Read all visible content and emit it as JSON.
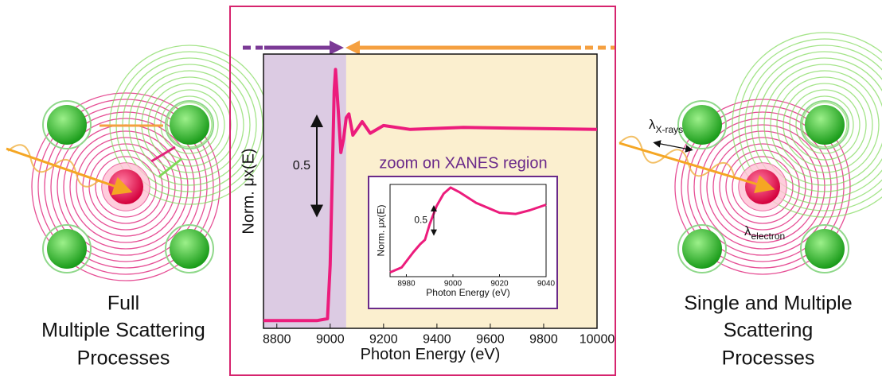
{
  "chart_data": [
    {
      "type": "line",
      "x_label": "Photon Energy (eV)",
      "y_label": "Norm. μx(E)",
      "x": [
        8750,
        8950,
        8990,
        9000,
        9010,
        9015,
        9020,
        9030,
        9040,
        9050,
        9060,
        9070,
        9085,
        9100,
        9120,
        9150,
        9200,
        9300,
        9500,
        10000
      ],
      "series": [
        {
          "color": "#ec1c7c",
          "values": [
            0.01,
            0.01,
            0.02,
            0.3,
            0.9,
            1.2,
            1.31,
            1.1,
            0.88,
            0.95,
            1.06,
            1.08,
            0.97,
            1.0,
            1.04,
            0.98,
            1.02,
            1.0,
            1.01,
            1.0
          ]
        }
      ],
      "xlim": [
        8750,
        10000
      ],
      "xticks": [
        8800,
        9000,
        9200,
        9400,
        9600,
        9800,
        10000
      ],
      "ylim": [
        -0.03,
        1.39
      ],
      "regions": [
        {
          "xlim": [
            8750,
            9060
          ],
          "color": "#dccbe3"
        },
        {
          "xlim": [
            9060,
            10000
          ],
          "color": "#fbefcf"
        }
      ],
      "scale_bar": 0.5
    },
    {
      "type": "line",
      "title": "zoom on XANES region",
      "x_label": "Photon Energy (eV)",
      "y_label": "Norm. μx(E)",
      "x": [
        8973,
        8978,
        8983,
        8986,
        8988,
        8990,
        8993,
        8996,
        8999,
        9003,
        9010,
        9020,
        9027,
        9033,
        9040
      ],
      "series": [
        {
          "color": "#ec1c7c",
          "values": [
            0.02,
            0.1,
            0.35,
            0.48,
            0.55,
            0.8,
            1.1,
            1.3,
            1.4,
            1.32,
            1.15,
            0.99,
            0.97,
            1.03,
            1.12
          ]
        }
      ],
      "xlim": [
        8973,
        9040
      ],
      "xticks": [
        8980,
        9000,
        9020,
        9040
      ],
      "ylim": [
        -0.05,
        1.45
      ],
      "scale_bar": 0.5
    }
  ],
  "captions": {
    "left": [
      "Full",
      "Multiple Scattering",
      "Processes"
    ],
    "right": [
      "Single and Multiple",
      "Scattering",
      "Processes"
    ]
  },
  "labels": {
    "x_rays": {
      "symbol": "λ",
      "subscript": "X-rays"
    },
    "electron": {
      "symbol": "λ",
      "subscript": "electron"
    }
  }
}
